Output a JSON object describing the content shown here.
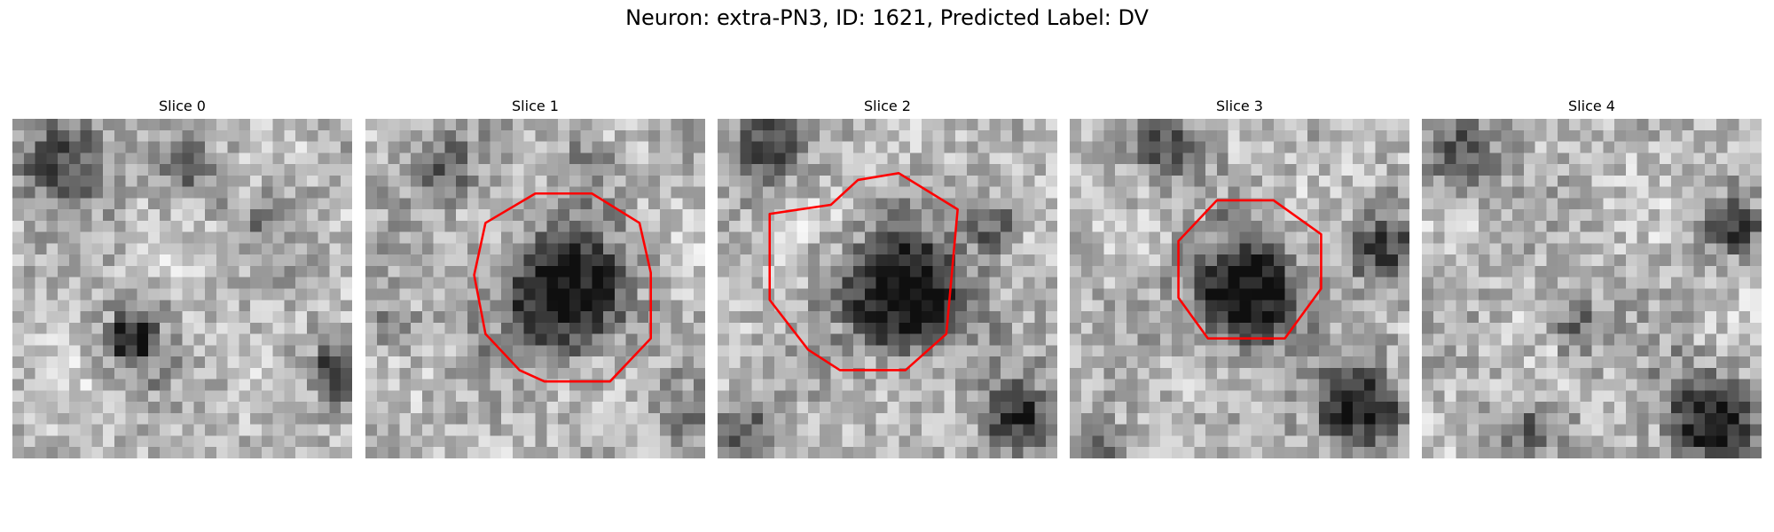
{
  "figure": {
    "title": "Neuron: extra-PN3, ID: 1621, Predicted Label: DV"
  },
  "outline_color": "#ff0000",
  "colormap": "gray",
  "panels": [
    {
      "title": "Slice 0",
      "seed": 11,
      "has_outline": false
    },
    {
      "title": "Slice 1",
      "seed": 23,
      "has_outline": true
    },
    {
      "title": "Slice 2",
      "seed": 37,
      "has_outline": true
    },
    {
      "title": "Slice 3",
      "seed": 51,
      "has_outline": true
    },
    {
      "title": "Slice 4",
      "seed": 67,
      "has_outline": false
    }
  ]
}
